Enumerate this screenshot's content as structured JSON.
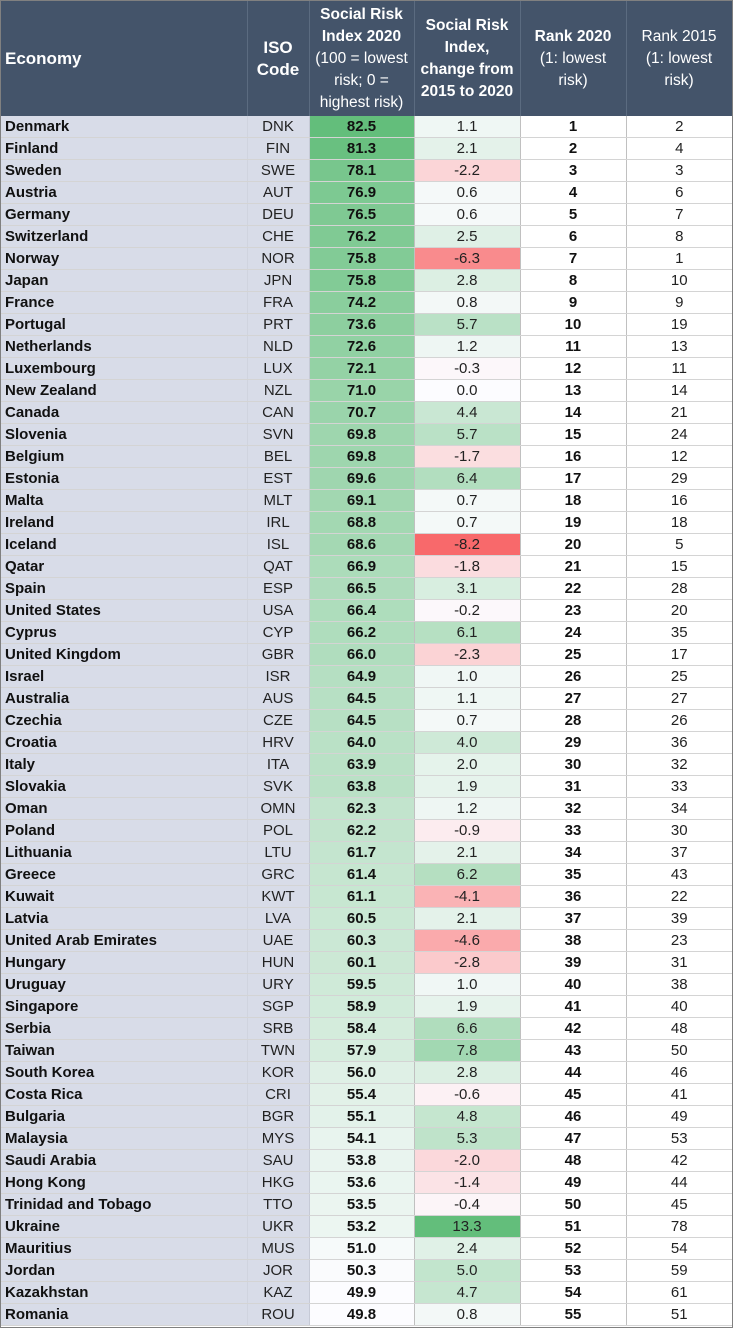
{
  "header": {
    "economy": "Economy",
    "iso": [
      "ISO",
      "Code"
    ],
    "index": [
      "Social Risk",
      "Index 2020",
      "(100 = lowest",
      "risk; 0 =",
      "highest risk)"
    ],
    "change": [
      "Social Risk",
      "Index,",
      "change from",
      "2015 to 2020"
    ],
    "rank2020": [
      "Rank 2020",
      "(1: lowest",
      "risk)"
    ],
    "rank2015": [
      "Rank 2015",
      "(1: lowest",
      "risk)"
    ]
  },
  "colors": {
    "index_high": "#63be7b",
    "index_low": "#fcfcff",
    "change_pos": "#63be7b",
    "change_neg": "#f8696b",
    "neutral": "#fcfcff"
  },
  "chart_data": {
    "type": "table",
    "columns": [
      "Economy",
      "ISO Code",
      "Social Risk Index 2020",
      "Social Risk Index, change from 2015 to 2020",
      "Rank 2020",
      "Rank 2015"
    ],
    "rows": [
      {
        "economy": "Denmark",
        "iso": "DNK",
        "index": "82.5",
        "change": "1.1",
        "rank2020": "1",
        "rank2015": "2"
      },
      {
        "economy": "Finland",
        "iso": "FIN",
        "index": "81.3",
        "change": "2.1",
        "rank2020": "2",
        "rank2015": "4"
      },
      {
        "economy": "Sweden",
        "iso": "SWE",
        "index": "78.1",
        "change": "-2.2",
        "rank2020": "3",
        "rank2015": "3"
      },
      {
        "economy": "Austria",
        "iso": "AUT",
        "index": "76.9",
        "change": "0.6",
        "rank2020": "4",
        "rank2015": "6"
      },
      {
        "economy": "Germany",
        "iso": "DEU",
        "index": "76.5",
        "change": "0.6",
        "rank2020": "5",
        "rank2015": "7"
      },
      {
        "economy": "Switzerland",
        "iso": "CHE",
        "index": "76.2",
        "change": "2.5",
        "rank2020": "6",
        "rank2015": "8"
      },
      {
        "economy": "Norway",
        "iso": "NOR",
        "index": "75.8",
        "change": "-6.3",
        "rank2020": "7",
        "rank2015": "1"
      },
      {
        "economy": "Japan",
        "iso": "JPN",
        "index": "75.8",
        "change": "2.8",
        "rank2020": "8",
        "rank2015": "10"
      },
      {
        "economy": "France",
        "iso": "FRA",
        "index": "74.2",
        "change": "0.8",
        "rank2020": "9",
        "rank2015": "9"
      },
      {
        "economy": "Portugal",
        "iso": "PRT",
        "index": "73.6",
        "change": "5.7",
        "rank2020": "10",
        "rank2015": "19"
      },
      {
        "economy": "Netherlands",
        "iso": "NLD",
        "index": "72.6",
        "change": "1.2",
        "rank2020": "11",
        "rank2015": "13"
      },
      {
        "economy": "Luxembourg",
        "iso": "LUX",
        "index": "72.1",
        "change": "-0.3",
        "rank2020": "12",
        "rank2015": "11"
      },
      {
        "economy": "New Zealand",
        "iso": "NZL",
        "index": "71.0",
        "change": "0.0",
        "rank2020": "13",
        "rank2015": "14"
      },
      {
        "economy": "Canada",
        "iso": "CAN",
        "index": "70.7",
        "change": "4.4",
        "rank2020": "14",
        "rank2015": "21"
      },
      {
        "economy": "Slovenia",
        "iso": "SVN",
        "index": "69.8",
        "change": "5.7",
        "rank2020": "15",
        "rank2015": "24"
      },
      {
        "economy": "Belgium",
        "iso": "BEL",
        "index": "69.8",
        "change": "-1.7",
        "rank2020": "16",
        "rank2015": "12"
      },
      {
        "economy": "Estonia",
        "iso": "EST",
        "index": "69.6",
        "change": "6.4",
        "rank2020": "17",
        "rank2015": "29"
      },
      {
        "economy": "Malta",
        "iso": "MLT",
        "index": "69.1",
        "change": "0.7",
        "rank2020": "18",
        "rank2015": "16"
      },
      {
        "economy": "Ireland",
        "iso": "IRL",
        "index": "68.8",
        "change": "0.7",
        "rank2020": "19",
        "rank2015": "18"
      },
      {
        "economy": "Iceland",
        "iso": "ISL",
        "index": "68.6",
        "change": "-8.2",
        "rank2020": "20",
        "rank2015": "5"
      },
      {
        "economy": "Qatar",
        "iso": "QAT",
        "index": "66.9",
        "change": "-1.8",
        "rank2020": "21",
        "rank2015": "15"
      },
      {
        "economy": "Spain",
        "iso": "ESP",
        "index": "66.5",
        "change": "3.1",
        "rank2020": "22",
        "rank2015": "28"
      },
      {
        "economy": "United States",
        "iso": "USA",
        "index": "66.4",
        "change": "-0.2",
        "rank2020": "23",
        "rank2015": "20"
      },
      {
        "economy": "Cyprus",
        "iso": "CYP",
        "index": "66.2",
        "change": "6.1",
        "rank2020": "24",
        "rank2015": "35"
      },
      {
        "economy": "United Kingdom",
        "iso": "GBR",
        "index": "66.0",
        "change": "-2.3",
        "rank2020": "25",
        "rank2015": "17"
      },
      {
        "economy": "Israel",
        "iso": "ISR",
        "index": "64.9",
        "change": "1.0",
        "rank2020": "26",
        "rank2015": "25"
      },
      {
        "economy": "Australia",
        "iso": "AUS",
        "index": "64.5",
        "change": "1.1",
        "rank2020": "27",
        "rank2015": "27"
      },
      {
        "economy": "Czechia",
        "iso": "CZE",
        "index": "64.5",
        "change": "0.7",
        "rank2020": "28",
        "rank2015": "26"
      },
      {
        "economy": "Croatia",
        "iso": "HRV",
        "index": "64.0",
        "change": "4.0",
        "rank2020": "29",
        "rank2015": "36"
      },
      {
        "economy": "Italy",
        "iso": "ITA",
        "index": "63.9",
        "change": "2.0",
        "rank2020": "30",
        "rank2015": "32"
      },
      {
        "economy": "Slovakia",
        "iso": "SVK",
        "index": "63.8",
        "change": "1.9",
        "rank2020": "31",
        "rank2015": "33"
      },
      {
        "economy": "Oman",
        "iso": "OMN",
        "index": "62.3",
        "change": "1.2",
        "rank2020": "32",
        "rank2015": "34"
      },
      {
        "economy": "Poland",
        "iso": "POL",
        "index": "62.2",
        "change": "-0.9",
        "rank2020": "33",
        "rank2015": "30"
      },
      {
        "economy": "Lithuania",
        "iso": "LTU",
        "index": "61.7",
        "change": "2.1",
        "rank2020": "34",
        "rank2015": "37"
      },
      {
        "economy": "Greece",
        "iso": "GRC",
        "index": "61.4",
        "change": "6.2",
        "rank2020": "35",
        "rank2015": "43"
      },
      {
        "economy": "Kuwait",
        "iso": "KWT",
        "index": "61.1",
        "change": "-4.1",
        "rank2020": "36",
        "rank2015": "22"
      },
      {
        "economy": "Latvia",
        "iso": "LVA",
        "index": "60.5",
        "change": "2.1",
        "rank2020": "37",
        "rank2015": "39"
      },
      {
        "economy": "United Arab Emirates",
        "iso": "UAE",
        "index": "60.3",
        "change": "-4.6",
        "rank2020": "38",
        "rank2015": "23"
      },
      {
        "economy": "Hungary",
        "iso": "HUN",
        "index": "60.1",
        "change": "-2.8",
        "rank2020": "39",
        "rank2015": "31"
      },
      {
        "economy": "Uruguay",
        "iso": "URY",
        "index": "59.5",
        "change": "1.0",
        "rank2020": "40",
        "rank2015": "38"
      },
      {
        "economy": "Singapore",
        "iso": "SGP",
        "index": "58.9",
        "change": "1.9",
        "rank2020": "41",
        "rank2015": "40"
      },
      {
        "economy": "Serbia",
        "iso": "SRB",
        "index": "58.4",
        "change": "6.6",
        "rank2020": "42",
        "rank2015": "48"
      },
      {
        "economy": "Taiwan",
        "iso": "TWN",
        "index": "57.9",
        "change": "7.8",
        "rank2020": "43",
        "rank2015": "50"
      },
      {
        "economy": "South Korea",
        "iso": "KOR",
        "index": "56.0",
        "change": "2.8",
        "rank2020": "44",
        "rank2015": "46"
      },
      {
        "economy": "Costa Rica",
        "iso": "CRI",
        "index": "55.4",
        "change": "-0.6",
        "rank2020": "45",
        "rank2015": "41"
      },
      {
        "economy": "Bulgaria",
        "iso": "BGR",
        "index": "55.1",
        "change": "4.8",
        "rank2020": "46",
        "rank2015": "49"
      },
      {
        "economy": "Malaysia",
        "iso": "MYS",
        "index": "54.1",
        "change": "5.3",
        "rank2020": "47",
        "rank2015": "53"
      },
      {
        "economy": "Saudi Arabia",
        "iso": "SAU",
        "index": "53.8",
        "change": "-2.0",
        "rank2020": "48",
        "rank2015": "42"
      },
      {
        "economy": "Hong Kong",
        "iso": "HKG",
        "index": "53.6",
        "change": "-1.4",
        "rank2020": "49",
        "rank2015": "44"
      },
      {
        "economy": "Trinidad and Tobago",
        "iso": "TTO",
        "index": "53.5",
        "change": "-0.4",
        "rank2020": "50",
        "rank2015": "45"
      },
      {
        "economy": "Ukraine",
        "iso": "UKR",
        "index": "53.2",
        "change": "13.3",
        "rank2020": "51",
        "rank2015": "78"
      },
      {
        "economy": "Mauritius",
        "iso": "MUS",
        "index": "51.0",
        "change": "2.4",
        "rank2020": "52",
        "rank2015": "54"
      },
      {
        "economy": "Jordan",
        "iso": "JOR",
        "index": "50.3",
        "change": "5.0",
        "rank2020": "53",
        "rank2015": "59"
      },
      {
        "economy": "Kazakhstan",
        "iso": "KAZ",
        "index": "49.9",
        "change": "4.7",
        "rank2020": "54",
        "rank2015": "61"
      },
      {
        "economy": "Romania",
        "iso": "ROU",
        "index": "49.8",
        "change": "0.8",
        "rank2020": "55",
        "rank2015": "51"
      }
    ]
  }
}
